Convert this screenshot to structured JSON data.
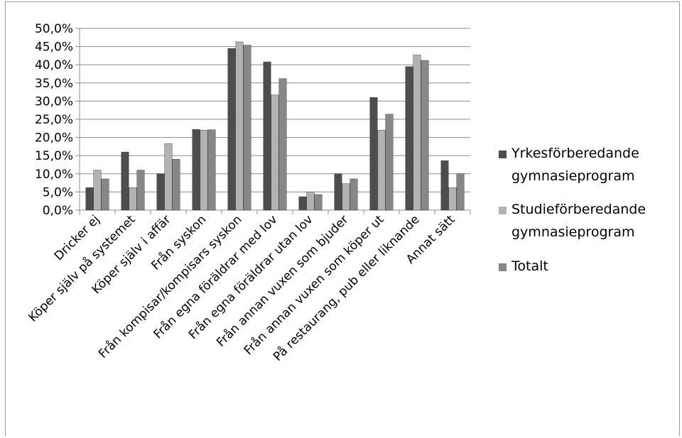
{
  "chart_data": {
    "type": "bar",
    "title": "",
    "xlabel": "",
    "ylabel": "",
    "ylim": [
      0,
      50
    ],
    "y_tick_labels": [
      "0,0%",
      "5,0%",
      "10,0%",
      "15,0%",
      "20,0%",
      "25,0%",
      "30,0%",
      "35,0%",
      "40,0%",
      "45,0%",
      "50,0%"
    ],
    "grid": "horizontal",
    "legend_position": "right",
    "categories": [
      "Dricker ej",
      "Köper själv på systemet",
      "Köper själv i affär",
      "Från syskon",
      "Från kompisar/kompisars syskon",
      "Från egna föräldrar med lov",
      "Från egna föräldrar utan lov",
      "Från annan vuxen som bjuder",
      "Från annan vuxen som köper ut",
      "På restaurang, pub eller liknande",
      "Annat sätt"
    ],
    "series": [
      {
        "name": "Yrkesförberedande gymnasieprogram",
        "legend_lines": [
          "Yrkesförberedande",
          "gymnasieprogram"
        ],
        "color": "#4d4d4d",
        "values": [
          6.2,
          16.0,
          10.0,
          22.2,
          44.5,
          40.8,
          3.7,
          10.0,
          31.0,
          39.5,
          13.6
        ]
      },
      {
        "name": "Studieförberedande gymnasieprogram",
        "legend_lines": [
          "Studieförberedande",
          "gymnasieprogram"
        ],
        "color": "#b2b2b2",
        "values": [
          11.0,
          6.2,
          18.3,
          22.0,
          46.3,
          31.7,
          5.0,
          7.3,
          22.0,
          42.7,
          6.2
        ]
      },
      {
        "name": "Totalt",
        "legend_lines": [
          "Totalt"
        ],
        "color": "#878787",
        "values": [
          8.6,
          11.0,
          14.0,
          22.1,
          45.4,
          36.2,
          4.3,
          8.6,
          26.4,
          41.2,
          10.0
        ]
      }
    ]
  }
}
